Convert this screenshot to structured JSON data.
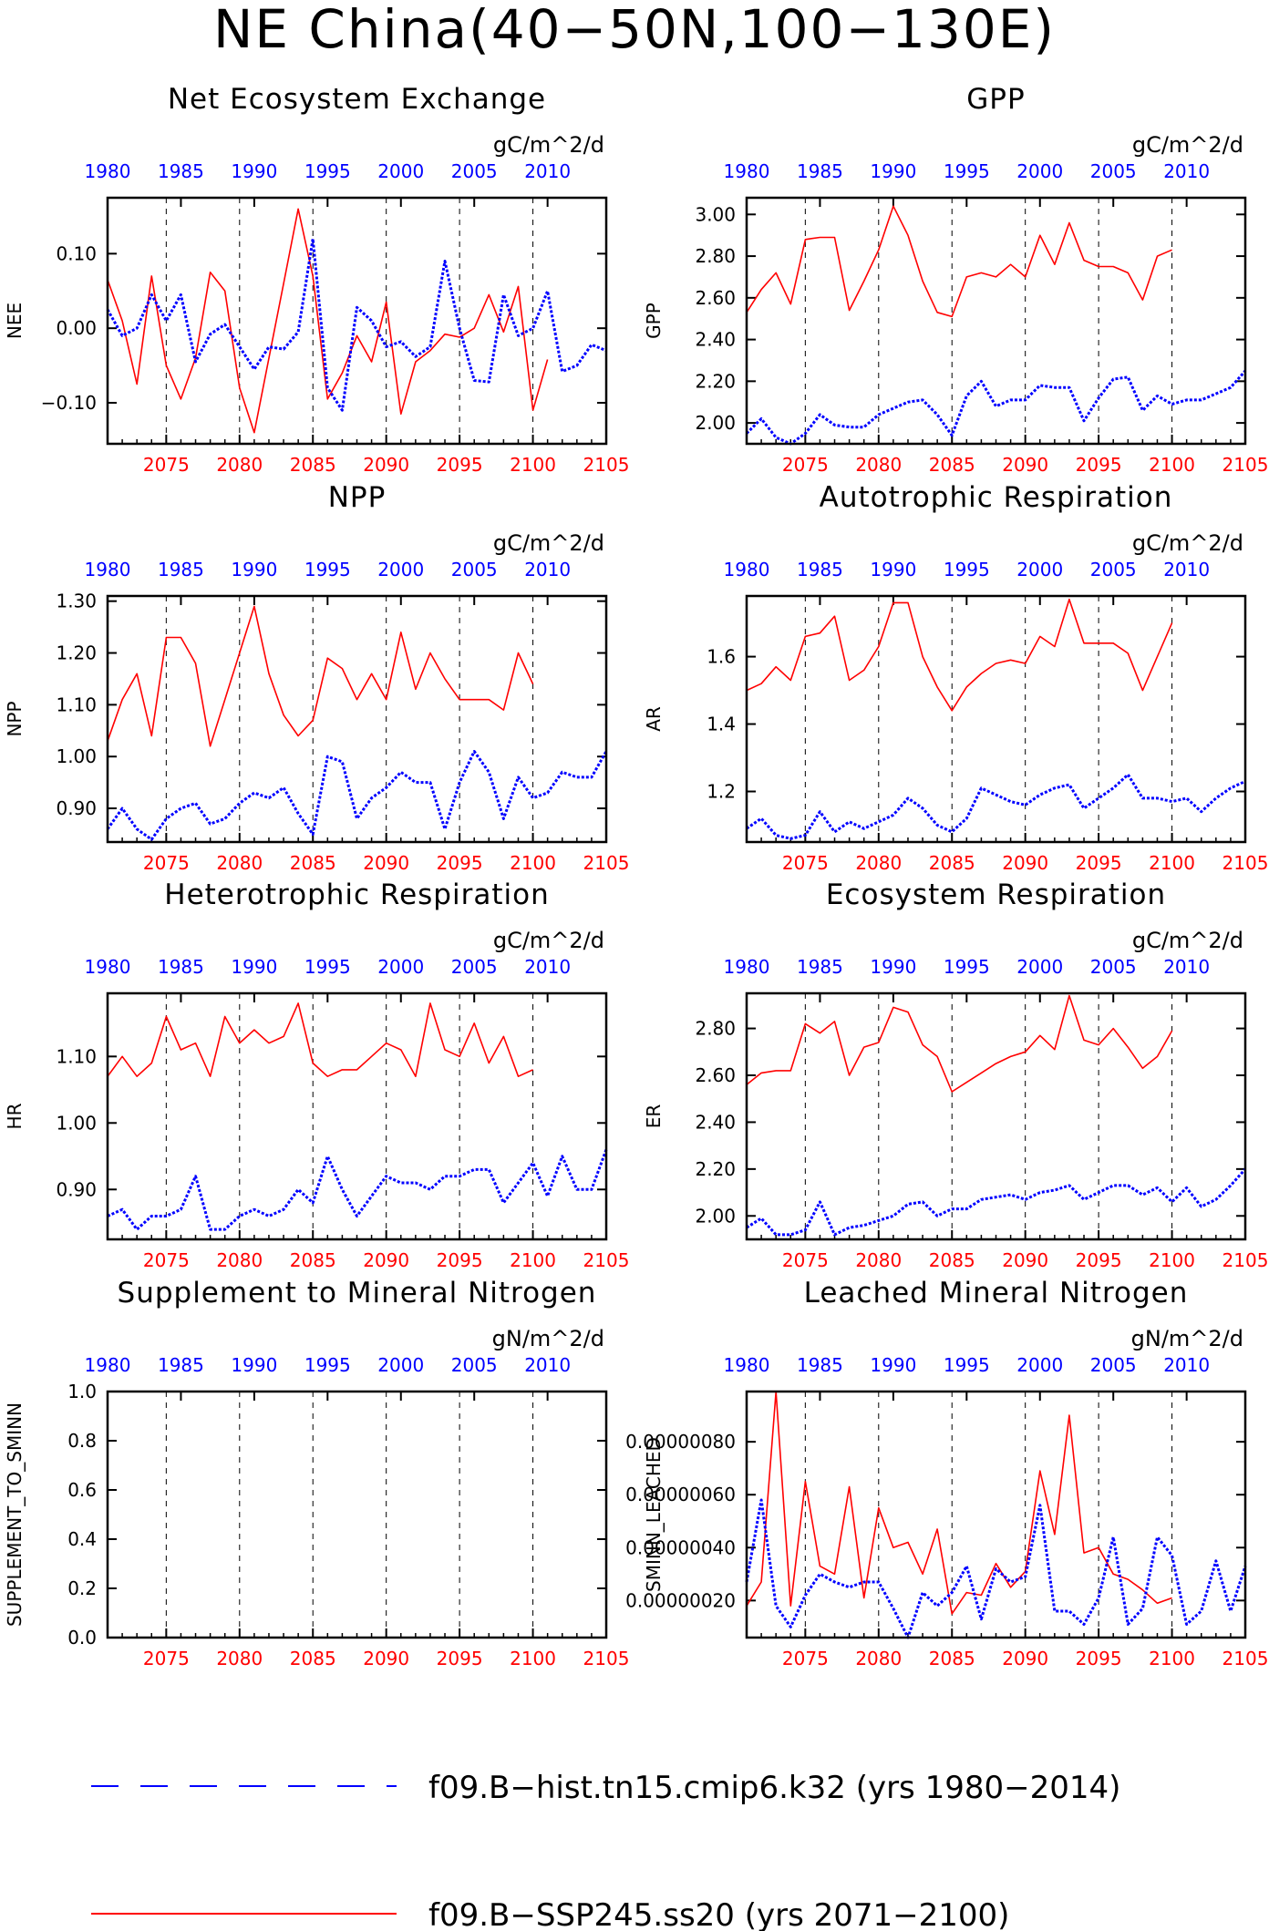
{
  "figure": {
    "title": "NE China(40−50N,100−130E)"
  },
  "colors": {
    "hist": "#0000ff",
    "ssp": "#ff0000",
    "axis": "#000000",
    "grid": "#000000"
  },
  "legend": {
    "entries": [
      {
        "label": "f09.B−hist.tn15.cmip6.k32 (yrs 1980−2014)",
        "style": "dashed",
        "color": "#0000ff"
      },
      {
        "label": "f09.B−SSP245.ss20 (yrs 2071−2100)",
        "style": "solid",
        "color": "#ff0000"
      }
    ]
  },
  "chart_data": [
    {
      "type": "line",
      "title": "Net Ecosystem Exchange",
      "units": "gC/m^2/d",
      "ylabel": "NEE",
      "top_axis_ticks": [
        "1980",
        "1985",
        "1990",
        "1995",
        "2000",
        "2005",
        "2010"
      ],
      "bottom_axis_ticks": [
        "2075",
        "2080",
        "2085",
        "2090",
        "2095",
        "2100",
        "2105"
      ],
      "ylim": [
        -0.155,
        0.175
      ],
      "yticks": [
        -0.1,
        0.0,
        0.1
      ],
      "ytick_labels": [
        "−0.10",
        "0.00",
        "0.10"
      ],
      "grid": "vertical dashed at 5-year ticks",
      "series": [
        {
          "x_start": 2071,
          "values": [
            0.065,
            0.01,
            -0.075,
            0.07,
            -0.05,
            -0.095,
            -0.04,
            0.075,
            0.05,
            -0.08,
            -0.14,
            -0.04,
            0.06,
            0.16,
            0.07,
            -0.095,
            -0.06,
            -0.01,
            -0.045,
            0.035,
            -0.115,
            -0.045,
            -0.03,
            -0.008,
            -0.012,
            0.0,
            0.045,
            -0.005,
            0.056,
            -0.11,
            -0.042
          ]
        },
        {
          "x_start": 2071,
          "values": [
            0.025,
            -0.01,
            0.0,
            0.045,
            0.01,
            0.045,
            -0.045,
            -0.008,
            0.005,
            -0.025,
            -0.055,
            -0.025,
            -0.028,
            -0.005,
            0.12,
            -0.08,
            -0.11,
            0.028,
            0.01,
            -0.025,
            -0.018,
            -0.038,
            -0.025,
            0.09,
            0.0,
            -0.07,
            -0.072,
            0.045,
            -0.01,
            0.0,
            0.05,
            -0.058,
            -0.05,
            -0.022,
            -0.03
          ]
        }
      ]
    },
    {
      "type": "line",
      "title": "GPP",
      "units": "gC/m^2/d",
      "ylabel": "GPP",
      "top_axis_ticks": [
        "1980",
        "1985",
        "1990",
        "1995",
        "2000",
        "2005",
        "2010"
      ],
      "bottom_axis_ticks": [
        "2075",
        "2080",
        "2085",
        "2090",
        "2095",
        "2100",
        "2105"
      ],
      "ylim": [
        1.9,
        3.08
      ],
      "yticks": [
        2.0,
        2.2,
        2.4,
        2.6,
        2.8,
        3.0
      ],
      "ytick_labels": [
        "2.00",
        "2.20",
        "2.40",
        "2.60",
        "2.80",
        "3.00"
      ],
      "grid": "vertical dashed at 5-year ticks",
      "series": [
        {
          "x_start": 2071,
          "values": [
            2.53,
            2.64,
            2.72,
            2.57,
            2.88,
            2.89,
            2.89,
            2.54,
            2.68,
            2.83,
            3.04,
            2.9,
            2.68,
            2.53,
            2.51,
            2.7,
            2.72,
            2.7,
            2.76,
            2.7,
            2.9,
            2.76,
            2.96,
            2.78,
            2.75,
            2.75,
            2.72,
            2.59,
            2.8,
            2.83
          ]
        },
        {
          "x_start": 2071,
          "values": [
            1.95,
            2.02,
            1.93,
            1.9,
            1.95,
            2.04,
            1.99,
            1.98,
            1.98,
            2.04,
            2.07,
            2.1,
            2.11,
            2.04,
            1.94,
            2.13,
            2.2,
            2.08,
            2.11,
            2.11,
            2.18,
            2.17,
            2.17,
            2.01,
            2.12,
            2.21,
            2.22,
            2.06,
            2.13,
            2.09,
            2.11,
            2.11,
            2.14,
            2.17,
            2.25
          ]
        }
      ]
    },
    {
      "type": "line",
      "title": "NPP",
      "units": "gC/m^2/d",
      "ylabel": "NPP",
      "top_axis_ticks": [
        "1980",
        "1985",
        "1990",
        "1995",
        "2000",
        "2005",
        "2010"
      ],
      "bottom_axis_ticks": [
        "2075",
        "2080",
        "2085",
        "2090",
        "2095",
        "2100",
        "2105"
      ],
      "ylim": [
        0.835,
        1.31
      ],
      "yticks": [
        0.9,
        1.0,
        1.1,
        1.2,
        1.3
      ],
      "ytick_labels": [
        "0.90",
        "1.00",
        "1.10",
        "1.20",
        "1.30"
      ],
      "grid": "vertical dashed at 5-year ticks",
      "series": [
        {
          "x_start": 2071,
          "values": [
            1.03,
            1.11,
            1.16,
            1.04,
            1.23,
            1.23,
            1.18,
            1.02,
            1.11,
            1.2,
            1.29,
            1.16,
            1.08,
            1.04,
            1.07,
            1.19,
            1.17,
            1.11,
            1.16,
            1.11,
            1.24,
            1.13,
            1.2,
            1.15,
            1.11,
            1.11,
            1.11,
            1.09,
            1.2,
            1.14
          ]
        },
        {
          "x_start": 2071,
          "values": [
            0.86,
            0.9,
            0.86,
            0.84,
            0.88,
            0.9,
            0.91,
            0.87,
            0.88,
            0.91,
            0.93,
            0.92,
            0.94,
            0.89,
            0.85,
            1.0,
            0.99,
            0.88,
            0.92,
            0.94,
            0.97,
            0.95,
            0.95,
            0.86,
            0.95,
            1.01,
            0.97,
            0.88,
            0.96,
            0.92,
            0.93,
            0.97,
            0.96,
            0.96,
            1.01
          ]
        }
      ]
    },
    {
      "type": "line",
      "title": "Autotrophic Respiration",
      "units": "gC/m^2/d",
      "ylabel": "AR",
      "top_axis_ticks": [
        "1980",
        "1985",
        "1990",
        "1995",
        "2000",
        "2005",
        "2010"
      ],
      "bottom_axis_ticks": [
        "2075",
        "2080",
        "2085",
        "2090",
        "2095",
        "2100",
        "2105"
      ],
      "ylim": [
        1.05,
        1.78
      ],
      "yticks": [
        1.2,
        1.4,
        1.6
      ],
      "ytick_labels": [
        "1.2",
        "1.4",
        "1.6"
      ],
      "grid": "vertical dashed at 5-year ticks",
      "series": [
        {
          "x_start": 2071,
          "values": [
            1.5,
            1.52,
            1.57,
            1.53,
            1.66,
            1.67,
            1.72,
            1.53,
            1.56,
            1.63,
            1.76,
            1.76,
            1.6,
            1.51,
            1.44,
            1.51,
            1.55,
            1.58,
            1.59,
            1.58,
            1.66,
            1.63,
            1.77,
            1.64,
            1.64,
            1.64,
            1.61,
            1.5,
            1.6,
            1.7
          ]
        },
        {
          "x_start": 2071,
          "values": [
            1.09,
            1.12,
            1.07,
            1.06,
            1.07,
            1.14,
            1.08,
            1.11,
            1.09,
            1.11,
            1.13,
            1.18,
            1.15,
            1.1,
            1.08,
            1.12,
            1.21,
            1.19,
            1.17,
            1.16,
            1.19,
            1.21,
            1.22,
            1.15,
            1.18,
            1.21,
            1.25,
            1.18,
            1.18,
            1.17,
            1.18,
            1.14,
            1.18,
            1.21,
            1.23
          ]
        }
      ]
    },
    {
      "type": "line",
      "title": "Heterotrophic Respiration",
      "units": "gC/m^2/d",
      "ylabel": "HR",
      "top_axis_ticks": [
        "1980",
        "1985",
        "1990",
        "1995",
        "2000",
        "2005",
        "2010"
      ],
      "bottom_axis_ticks": [
        "2075",
        "2080",
        "2085",
        "2090",
        "2095",
        "2100",
        "2105"
      ],
      "ylim": [
        0.825,
        1.195
      ],
      "yticks": [
        0.9,
        1.0,
        1.1
      ],
      "ytick_labels": [
        "0.90",
        "1.00",
        "1.10"
      ],
      "grid": "vertical dashed at 5-year ticks",
      "series": [
        {
          "x_start": 2071,
          "values": [
            1.07,
            1.1,
            1.07,
            1.09,
            1.16,
            1.11,
            1.12,
            1.07,
            1.16,
            1.12,
            1.14,
            1.12,
            1.13,
            1.18,
            1.09,
            1.07,
            1.08,
            1.08,
            1.1,
            1.12,
            1.11,
            1.07,
            1.18,
            1.11,
            1.1,
            1.15,
            1.09,
            1.13,
            1.07,
            1.08
          ]
        },
        {
          "x_start": 2071,
          "values": [
            0.86,
            0.87,
            0.84,
            0.86,
            0.86,
            0.87,
            0.92,
            0.84,
            0.84,
            0.86,
            0.87,
            0.86,
            0.87,
            0.9,
            0.88,
            0.95,
            0.9,
            0.86,
            0.89,
            0.92,
            0.91,
            0.91,
            0.9,
            0.92,
            0.92,
            0.93,
            0.93,
            0.88,
            0.91,
            0.94,
            0.89,
            0.95,
            0.9,
            0.9,
            0.96
          ]
        }
      ]
    },
    {
      "type": "line",
      "title": "Ecosystem Respiration",
      "units": "gC/m^2/d",
      "ylabel": "ER",
      "top_axis_ticks": [
        "1980",
        "1985",
        "1990",
        "1995",
        "2000",
        "2005",
        "2010"
      ],
      "bottom_axis_ticks": [
        "2075",
        "2080",
        "2085",
        "2090",
        "2095",
        "2100",
        "2105"
      ],
      "ylim": [
        1.9,
        2.95
      ],
      "yticks": [
        2.0,
        2.2,
        2.4,
        2.6,
        2.8
      ],
      "ytick_labels": [
        "2.00",
        "2.20",
        "2.40",
        "2.60",
        "2.80"
      ],
      "grid": "vertical dashed at 5-year ticks",
      "series": [
        {
          "x_start": 2071,
          "values": [
            2.56,
            2.61,
            2.62,
            2.62,
            2.82,
            2.78,
            2.83,
            2.6,
            2.72,
            2.74,
            2.89,
            2.87,
            2.73,
            2.68,
            2.53,
            2.57,
            2.61,
            2.65,
            2.68,
            2.7,
            2.77,
            2.71,
            2.94,
            2.75,
            2.73,
            2.8,
            2.72,
            2.63,
            2.68,
            2.79
          ]
        },
        {
          "x_start": 2071,
          "values": [
            1.95,
            1.99,
            1.92,
            1.92,
            1.94,
            2.06,
            1.92,
            1.95,
            1.96,
            1.98,
            2.0,
            2.05,
            2.06,
            2.0,
            2.03,
            2.03,
            2.07,
            2.08,
            2.09,
            2.07,
            2.1,
            2.11,
            2.13,
            2.07,
            2.1,
            2.13,
            2.13,
            2.09,
            2.12,
            2.06,
            2.12,
            2.04,
            2.07,
            2.13,
            2.2
          ]
        }
      ]
    },
    {
      "type": "line",
      "title": "Supplement to Mineral Nitrogen",
      "units": "gN/m^2/d",
      "ylabel": "SUPPLEMENT_TO_SMINN",
      "top_axis_ticks": [
        "1980",
        "1985",
        "1990",
        "1995",
        "2000",
        "2005",
        "2010"
      ],
      "bottom_axis_ticks": [
        "2075",
        "2080",
        "2085",
        "2090",
        "2095",
        "2100",
        "2105"
      ],
      "ylim": [
        0.0,
        1.0
      ],
      "yticks": [
        0.0,
        0.2,
        0.4,
        0.6,
        0.8,
        1.0
      ],
      "ytick_labels": [
        "0.0",
        "0.2",
        "0.4",
        "0.6",
        "0.8",
        "1.0"
      ],
      "grid": "vertical dashed at 5-year ticks",
      "series": []
    },
    {
      "type": "line",
      "title": "Leached Mineral Nitrogen",
      "units": "gN/m^2/d",
      "ylabel": "SMINN_LEACHED",
      "top_axis_ticks": [
        "1980",
        "1985",
        "1990",
        "1995",
        "2000",
        "2005",
        "2010"
      ],
      "bottom_axis_ticks": [
        "2075",
        "2080",
        "2085",
        "2090",
        "2095",
        "2100",
        "2105"
      ],
      "ylim": [
        6e-08,
        9.9e-07
      ],
      "yticks": [
        2e-07,
        4e-07,
        6e-07,
        8e-07
      ],
      "ytick_labels": [
        "0.00000020",
        "0.00000040",
        "0.00000060",
        "0.00000080"
      ],
      "grid": "vertical dashed at 5-year ticks",
      "series": [
        {
          "x_start": 2071,
          "values": [
            1.8e-07,
            2.7e-07,
            9.9e-07,
            1.8e-07,
            6.5e-07,
            3.3e-07,
            3e-07,
            6.3e-07,
            2.1e-07,
            5.5e-07,
            4e-07,
            4.2e-07,
            3e-07,
            4.7e-07,
            1.5e-07,
            2.3e-07,
            2.2e-07,
            3.4e-07,
            2.5e-07,
            3.1e-07,
            6.9e-07,
            4.5e-07,
            9e-07,
            3.8e-07,
            4e-07,
            3e-07,
            2.8e-07,
            2.4e-07,
            1.9e-07,
            2.1e-07
          ]
        },
        {
          "x_start": 2071,
          "values": [
            2.7e-07,
            5.8e-07,
            1.8e-07,
            1e-07,
            2.2e-07,
            3e-07,
            2.7e-07,
            2.5e-07,
            2.7e-07,
            2.7e-07,
            1.7e-07,
            6e-08,
            2.3e-07,
            1.8e-07,
            2.3e-07,
            3.3e-07,
            1.3e-07,
            3.2e-07,
            2.7e-07,
            2.9e-07,
            5.6e-07,
            1.6e-07,
            1.6e-07,
            1.1e-07,
            2.1e-07,
            4.4e-07,
            1.1e-07,
            1.7e-07,
            4.4e-07,
            3.7e-07,
            1.1e-07,
            1.6e-07,
            3.5e-07,
            1.6e-07,
            3.3e-07
          ]
        }
      ]
    }
  ]
}
